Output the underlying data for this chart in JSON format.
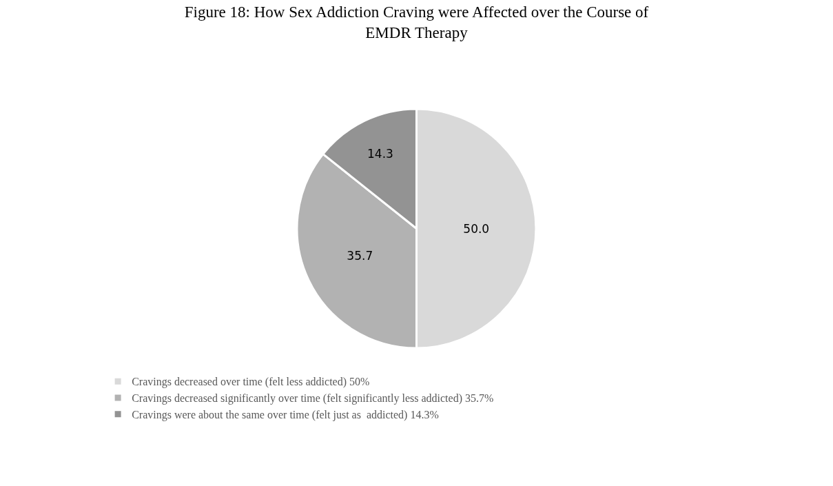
{
  "chart_data": {
    "type": "pie",
    "title": "Figure 18: How Sex Addiction Craving were Affected over the Course of EMDR Therapy",
    "categories": [
      "Cravings decreased over time (felt less addicted) 50%",
      "Cravings decreased significantly over time (felt significantly less addicted) 35.7%",
      "Cravings were about the same over time (felt just as  addicted) 14.3%"
    ],
    "values": [
      50,
      35.7,
      14.3
    ],
    "value_labels": [
      "50.0",
      "35.7",
      "14.3"
    ],
    "colors": [
      "#d9d9d9",
      "#b2b2b2",
      "#939393"
    ],
    "legend": "bottom left"
  }
}
